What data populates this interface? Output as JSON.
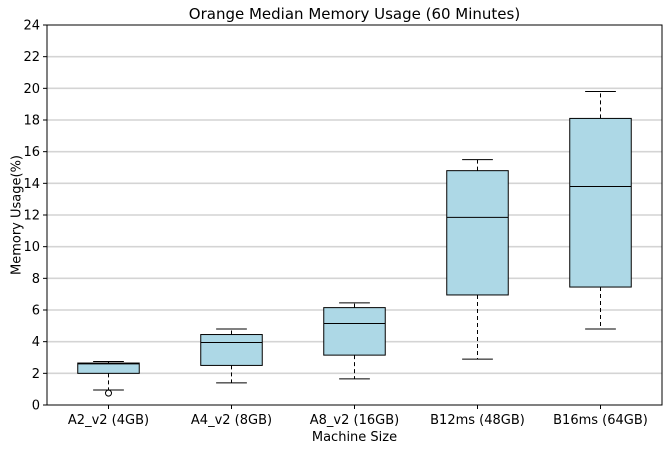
{
  "chart_data": {
    "type": "box",
    "title": "Orange Median Memory Usage (60 Minutes)",
    "xlabel": "Machine Size",
    "ylabel": "Memory Usage(%)",
    "ylim": [
      0,
      24
    ],
    "yticks": [
      0,
      2,
      4,
      6,
      8,
      10,
      12,
      14,
      16,
      18,
      20,
      22,
      24
    ],
    "grid": "horizontal",
    "box_color": "#add8e6",
    "categories": [
      "A2_v2 (4GB)",
      "A4_v2 (8GB)",
      "A8_v2 (16GB)",
      "B12ms (48GB)",
      "B16ms (64GB)"
    ],
    "boxes": [
      {
        "whisker_low": 0.95,
        "q1": 2.0,
        "median": 2.6,
        "q3": 2.65,
        "whisker_high": 2.75,
        "outliers": [
          0.75
        ]
      },
      {
        "whisker_low": 1.4,
        "q1": 2.5,
        "median": 3.95,
        "q3": 4.45,
        "whisker_high": 4.8,
        "outliers": []
      },
      {
        "whisker_low": 1.65,
        "q1": 3.15,
        "median": 5.15,
        "q3": 6.15,
        "whisker_high": 6.45,
        "outliers": []
      },
      {
        "whisker_low": 2.9,
        "q1": 6.95,
        "median": 11.85,
        "q3": 14.8,
        "whisker_high": 15.5,
        "outliers": []
      },
      {
        "whisker_low": 4.8,
        "q1": 7.45,
        "median": 13.8,
        "q3": 18.1,
        "whisker_high": 19.8,
        "outliers": []
      }
    ]
  }
}
